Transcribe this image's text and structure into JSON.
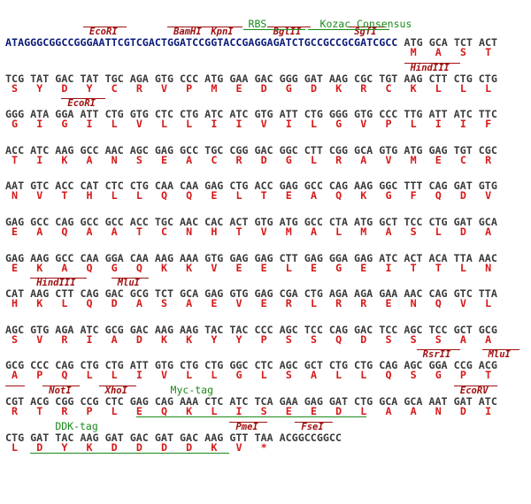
{
  "lines": [
    {
      "utr": "ATAGGGCGGCCGGGAATTCGTCGACTGGATCCGGTACCGAGGAGATCTGCCGCCGCGATCGCC",
      "codons": "ATG GCA TCT ACT",
      "protein": [
        "M",
        "A",
        "S",
        "T"
      ],
      "sites": [
        "EcoRI",
        "BamHI",
        "KpnI",
        "BglII",
        "SgfI"
      ],
      "features": [
        "RBS",
        "Kozac Consensus"
      ]
    },
    {
      "codons": "TCG TAT GAC TAT TGC AGA GTG CCC ATG GAA GAC GGG GAT AAG CGC TGT AAG CTT CTG CTG",
      "protein": [
        "S",
        "Y",
        "D",
        "Y",
        "C",
        "R",
        "V",
        "P",
        "M",
        "E",
        "D",
        "G",
        "D",
        "K",
        "R",
        "C",
        "K",
        "L",
        "L",
        "L"
      ],
      "sites": [
        "HindIII"
      ]
    },
    {
      "codons": "GGG ATA GGA ATT CTG GTG CTC CTG ATC ATC GTG ATT CTG GGG GTG CCC TTG ATT ATC TTC",
      "protein": [
        "G",
        "I",
        "G",
        "I",
        "L",
        "V",
        "L",
        "L",
        "I",
        "I",
        "V",
        "I",
        "L",
        "G",
        "V",
        "P",
        "L",
        "I",
        "I",
        "F"
      ],
      "sites": [
        "EcoRI"
      ]
    },
    {
      "codons": "ACC ATC AAG GCC AAC AGC GAG GCC TGC CGG GAC GGC CTT CGG GCA GTG ATG GAG TGT CGC",
      "protein": [
        "T",
        "I",
        "K",
        "A",
        "N",
        "S",
        "E",
        "A",
        "C",
        "R",
        "D",
        "G",
        "L",
        "R",
        "A",
        "V",
        "M",
        "E",
        "C",
        "R"
      ]
    },
    {
      "codons": "AAT GTC ACC CAT CTC CTG CAA CAA GAG CTG ACC GAG GCC CAG AAG GGC TTT CAG GAT GTG",
      "protein": [
        "N",
        "V",
        "T",
        "H",
        "L",
        "L",
        "Q",
        "Q",
        "E",
        "L",
        "T",
        "E",
        "A",
        "Q",
        "K",
        "G",
        "F",
        "Q",
        "D",
        "V"
      ]
    },
    {
      "codons": "GAG GCC CAG GCC GCC ACC TGC AAC CAC ACT GTG ATG GCC CTA ATG GCT TCC CTG GAT GCA",
      "protein": [
        "E",
        "A",
        "Q",
        "A",
        "A",
        "T",
        "C",
        "N",
        "H",
        "T",
        "V",
        "M",
        "A",
        "L",
        "M",
        "A",
        "S",
        "L",
        "D",
        "A"
      ]
    },
    {
      "codons": "GAG AAG GCC CAA GGA CAA AAG AAA GTG GAG GAG CTT GAG GGA GAG ATC ACT ACA TTA AAC",
      "protein": [
        "E",
        "K",
        "A",
        "Q",
        "G",
        "Q",
        "K",
        "K",
        "V",
        "E",
        "E",
        "L",
        "E",
        "G",
        "E",
        "I",
        "T",
        "T",
        "L",
        "N"
      ]
    },
    {
      "codons": "CAT AAG CTT CAG GAC GCG TCT GCA GAG GTG GAG CGA CTG AGA AGA GAA AAC CAG GTC TTA",
      "protein": [
        "H",
        "K",
        "L",
        "Q",
        "D",
        "A",
        "S",
        "A",
        "E",
        "V",
        "E",
        "R",
        "L",
        "R",
        "R",
        "E",
        "N",
        "Q",
        "V",
        "L"
      ],
      "sites": [
        "HindIII",
        "MluI"
      ]
    },
    {
      "codons": "AGC GTG AGA ATC GCG GAC AAG AAG TAC TAC CCC AGC TCC CAG GAC TCC AGC TCC GCT GCG",
      "protein": [
        "S",
        "V",
        "R",
        "I",
        "A",
        "D",
        "K",
        "K",
        "Y",
        "Y",
        "P",
        "S",
        "S",
        "Q",
        "D",
        "S",
        "S",
        "S",
        "A",
        "A"
      ]
    },
    {
      "codons": "GCG CCC CAG CTG CTG ATT GTG CTG CTG GGC CTC AGC GCT CTG CTG CAG AGC GGA CCG ACG",
      "protein": [
        "A",
        "P",
        "Q",
        "L",
        "L",
        "I",
        "V",
        "L",
        "L",
        "G",
        "L",
        "S",
        "A",
        "L",
        "L",
        "Q",
        "S",
        "G",
        "P",
        "T"
      ],
      "sites": [
        "RsrII",
        "MluI"
      ]
    },
    {
      "codons": "CGT ACG CGG CCG CTC GAG CAG AAA CTC ATC TCA GAA GAG GAT CTG GCA GCA AAT GAT ATC",
      "protein": [
        "R",
        "T",
        "R",
        "P",
        "L",
        "E",
        "Q",
        "K",
        "L",
        "I",
        "S",
        "E",
        "E",
        "D",
        "L",
        "A",
        "A",
        "N",
        "D",
        "I"
      ],
      "sites": [
        "NotI",
        "XhoI",
        "EcoRV"
      ],
      "features": [
        "Myc-tag"
      ]
    },
    {
      "codons": "CTG GAT TAC AAG GAT GAC GAT GAC AAG GTT TAA ACGGCCGGCC",
      "protein": [
        "L",
        "D",
        "Y",
        "K",
        "D",
        "D",
        "D",
        "D",
        "K",
        "V",
        "*"
      ],
      "sites": [
        "PmeI",
        "FseI"
      ],
      "features": [
        "DDK-tag"
      ]
    }
  ]
}
